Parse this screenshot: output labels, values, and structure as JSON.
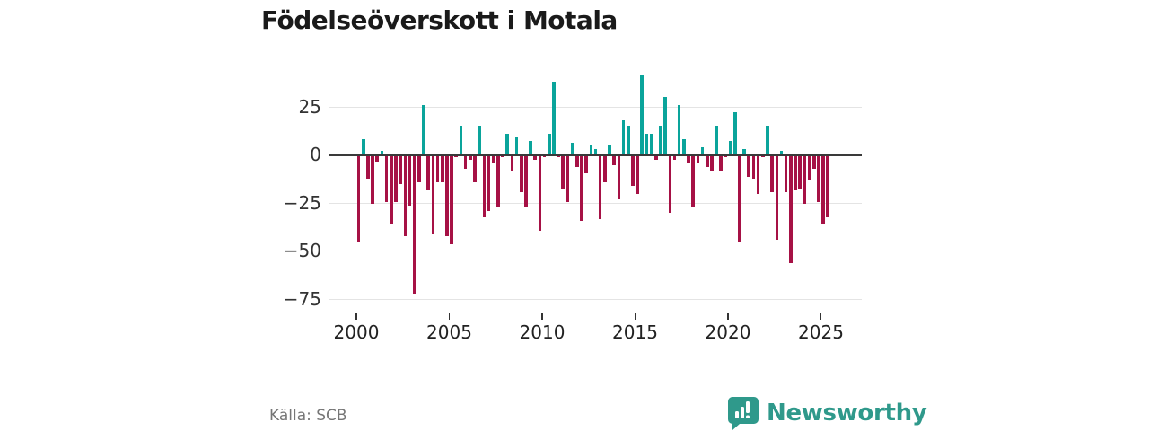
{
  "title": "Födelseöverskott i Motala",
  "source": "Källa: SCB",
  "logo": {
    "brand": "Newsworthy",
    "icon": "bar-chart-speech-bubble-icon"
  },
  "colors": {
    "positive_bar": "#0aa49b",
    "negative_bar": "#a61145",
    "zero_line": "#3a3a3a",
    "gridline": "#e4e4e4",
    "title_text": "#1a1a1a",
    "axis_text": "#333333",
    "source_text": "#767676",
    "brand_teal": "#2f998b"
  },
  "chart_data": {
    "type": "bar",
    "title": "Födelseöverskott i Motala",
    "x_unit": "quarter",
    "period_start": "2000 Q1",
    "period_end": "2025 Q2",
    "grid": "horizontal",
    "legend": "none",
    "ylim": [
      -80,
      45
    ],
    "y_tick_values": [
      25,
      0,
      -25,
      -50,
      -75
    ],
    "y_tick_labels": [
      "25",
      "0",
      "−25",
      "−50",
      "−75"
    ],
    "x_tick_years": [
      2000,
      2005,
      2010,
      2015,
      2020,
      2025
    ],
    "x_tick_labels": [
      "2000",
      "2005",
      "2010",
      "2015",
      "2020",
      "2025"
    ],
    "x": [
      "2000Q1",
      "2000Q2",
      "2000Q3",
      "2000Q4",
      "2001Q1",
      "2001Q2",
      "2001Q3",
      "2001Q4",
      "2002Q1",
      "2002Q2",
      "2002Q3",
      "2002Q4",
      "2003Q1",
      "2003Q2",
      "2003Q3",
      "2003Q4",
      "2004Q1",
      "2004Q2",
      "2004Q3",
      "2004Q4",
      "2005Q1",
      "2005Q2",
      "2005Q3",
      "2005Q4",
      "2006Q1",
      "2006Q2",
      "2006Q3",
      "2006Q4",
      "2007Q1",
      "2007Q2",
      "2007Q3",
      "2007Q4",
      "2008Q1",
      "2008Q2",
      "2008Q3",
      "2008Q4",
      "2009Q1",
      "2009Q2",
      "2009Q3",
      "2009Q4",
      "2010Q1",
      "2010Q2",
      "2010Q3",
      "2010Q4",
      "2011Q1",
      "2011Q2",
      "2011Q3",
      "2011Q4",
      "2012Q1",
      "2012Q2",
      "2012Q3",
      "2012Q4",
      "2013Q1",
      "2013Q2",
      "2013Q3",
      "2013Q4",
      "2014Q1",
      "2014Q2",
      "2014Q3",
      "2014Q4",
      "2015Q1",
      "2015Q2",
      "2015Q3",
      "2015Q4",
      "2016Q1",
      "2016Q2",
      "2016Q3",
      "2016Q4",
      "2017Q1",
      "2017Q2",
      "2017Q3",
      "2017Q4",
      "2018Q1",
      "2018Q2",
      "2018Q3",
      "2018Q4",
      "2019Q1",
      "2019Q2",
      "2019Q3",
      "2019Q4",
      "2020Q1",
      "2020Q2",
      "2020Q3",
      "2020Q4",
      "2021Q1",
      "2021Q2",
      "2021Q3",
      "2021Q4",
      "2022Q1",
      "2022Q2",
      "2022Q3",
      "2022Q4",
      "2023Q1",
      "2023Q2",
      "2023Q3",
      "2023Q4",
      "2024Q1",
      "2024Q2",
      "2024Q3",
      "2024Q4",
      "2025Q1",
      "2025Q2"
    ],
    "values": [
      -45,
      8,
      -12,
      -25,
      -3,
      2,
      -24,
      -36,
      -24,
      -15,
      -42,
      -26,
      -72,
      -14,
      26,
      -18,
      -41,
      -14,
      -14,
      -42,
      -46,
      -1,
      15,
      -7,
      -2,
      -14,
      15,
      -32,
      -29,
      -4,
      -27,
      -1,
      11,
      -8,
      9,
      -19,
      -27,
      7,
      -2,
      -39,
      -1,
      11,
      38,
      -1,
      -17,
      -24,
      6,
      -6,
      -34,
      -9,
      5,
      3,
      -33,
      -14,
      5,
      -5,
      -23,
      18,
      15,
      -16,
      -20,
      42,
      11,
      11,
      -2,
      15,
      30,
      -30,
      -2,
      26,
      8,
      -4,
      -27,
      -4,
      4,
      -6,
      -8,
      15,
      -8,
      -1,
      7,
      22,
      -45,
      3,
      -11,
      -12,
      -20,
      -1,
      15,
      -19,
      -44,
      2,
      -19,
      -56,
      -18,
      -17,
      -25,
      -13,
      -7,
      -24,
      -36,
      -32
    ]
  }
}
